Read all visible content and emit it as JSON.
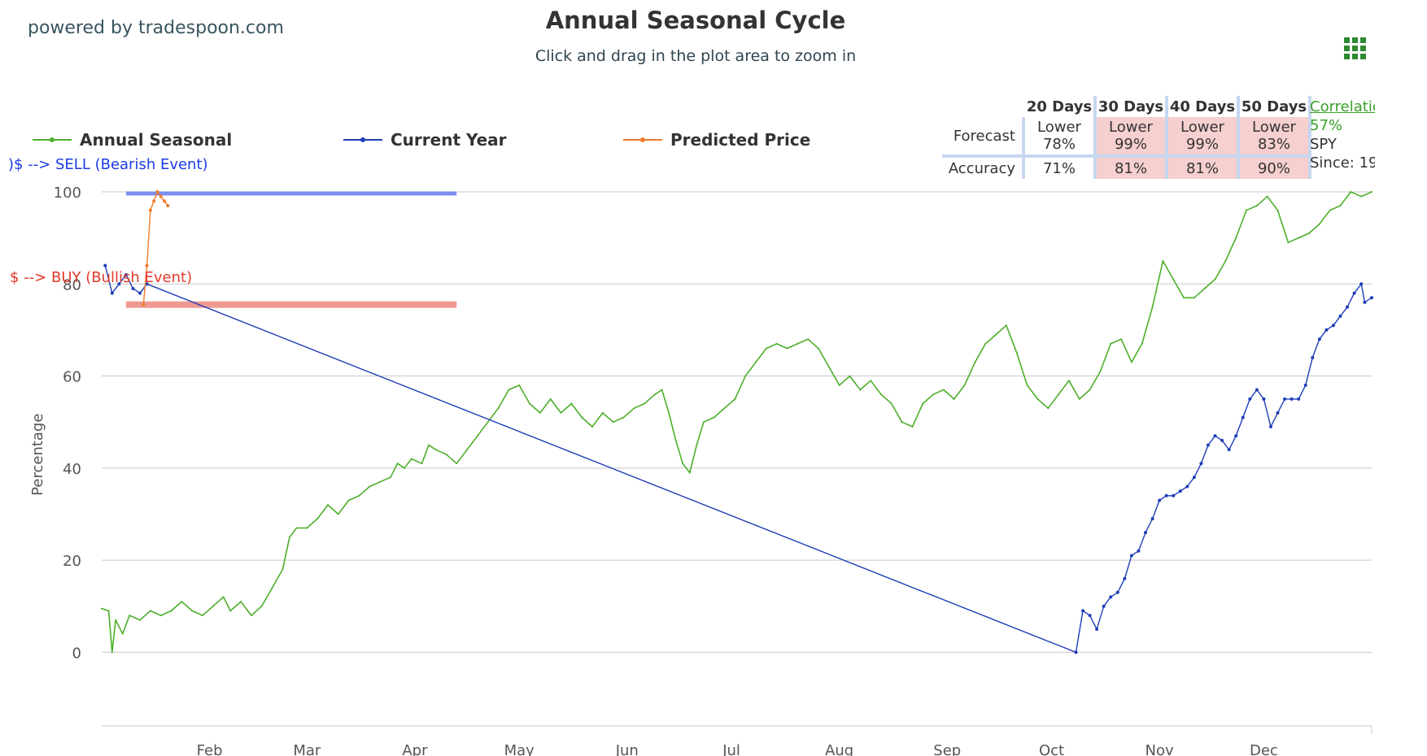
{
  "header": {
    "powered_by": "powered by tradespoon.com",
    "title": "Annual Seasonal Cycle",
    "subtitle": "Click and drag in the plot area to zoom in",
    "menu_icon": "hamburger-grid-icon"
  },
  "legend": [
    {
      "label": "Annual Seasonal",
      "color": "#4caf2a"
    },
    {
      "label": "Current Year",
      "color": "#1f3db8"
    },
    {
      "label": "Predicted Price",
      "color": "#f07b2a"
    }
  ],
  "stats_table": {
    "headers": [
      "20 Days",
      "30 Days",
      "40 Days",
      "50 Days"
    ],
    "forecast_label": "Forecast",
    "accuracy_label": "Accuracy",
    "forecast": [
      {
        "dir": "Lower",
        "pct": "78%",
        "highlight": false
      },
      {
        "dir": "Lower",
        "pct": "99%",
        "highlight": true
      },
      {
        "dir": "Lower",
        "pct": "99%",
        "highlight": true
      },
      {
        "dir": "Lower",
        "pct": "83%",
        "highlight": true
      }
    ],
    "accuracy": [
      {
        "pct": "71%",
        "highlight": false
      },
      {
        "pct": "81%",
        "highlight": true
      },
      {
        "pct": "81%",
        "highlight": true
      },
      {
        "pct": "90%",
        "highlight": true
      }
    ]
  },
  "correlation": {
    "link": "Correlatic",
    "value": "57%",
    "ticker": "SPY",
    "since": "Since: 19"
  },
  "chart_data": {
    "type": "line",
    "ylabel": "Percentage",
    "ylim": [
      -16,
      100
    ],
    "yticks": [
      0,
      20,
      40,
      60,
      80,
      100
    ],
    "xlim": [
      1,
      366
    ],
    "months": [
      {
        "label": "Feb",
        "day": 32
      },
      {
        "label": "Mar",
        "day": 60
      },
      {
        "label": "Apr",
        "day": 91
      },
      {
        "label": "May",
        "day": 121
      },
      {
        "label": "Jun",
        "day": 152
      },
      {
        "label": "Jul",
        "day": 182
      },
      {
        "label": "Aug",
        "day": 213
      },
      {
        "label": "Sep",
        "day": 244
      },
      {
        "label": "Oct",
        "day": 274
      },
      {
        "label": "Nov",
        "day": 305
      },
      {
        "label": "Dec",
        "day": 335
      }
    ],
    "grid": true,
    "sell_annotation": {
      "text": ")$ --> SELL (Bearish Event)",
      "level": 100,
      "color": "#1a3ae6",
      "line_color": "#7b8ff0",
      "x_start": 8,
      "x_end": 103
    },
    "buy_annotation": {
      "text": "$ --> BUY (Bullish Event)",
      "level": 75.5,
      "color": "#e23a2a",
      "line_color": "#ee9a90",
      "x_start": 8,
      "x_end": 103
    },
    "series": [
      {
        "name": "Annual Seasonal",
        "color": "#4caf2a",
        "points": [
          [
            1,
            9.5
          ],
          [
            3,
            9
          ],
          [
            4,
            0
          ],
          [
            5,
            7
          ],
          [
            7,
            4
          ],
          [
            9,
            8
          ],
          [
            12,
            7
          ],
          [
            15,
            9
          ],
          [
            18,
            8
          ],
          [
            21,
            9
          ],
          [
            24,
            11
          ],
          [
            27,
            9
          ],
          [
            30,
            8
          ],
          [
            33,
            10
          ],
          [
            36,
            12
          ],
          [
            38,
            9
          ],
          [
            41,
            11
          ],
          [
            44,
            8
          ],
          [
            47,
            10
          ],
          [
            50,
            14
          ],
          [
            53,
            18
          ],
          [
            55,
            25
          ],
          [
            57,
            27
          ],
          [
            60,
            27
          ],
          [
            63,
            29
          ],
          [
            66,
            32
          ],
          [
            69,
            30
          ],
          [
            72,
            33
          ],
          [
            75,
            34
          ],
          [
            78,
            36
          ],
          [
            81,
            37
          ],
          [
            84,
            38
          ],
          [
            86,
            41
          ],
          [
            88,
            40
          ],
          [
            90,
            42
          ],
          [
            93,
            41
          ],
          [
            95,
            45
          ],
          [
            97,
            44
          ],
          [
            100,
            43
          ],
          [
            103,
            41
          ],
          [
            106,
            44
          ],
          [
            109,
            47
          ],
          [
            112,
            50
          ],
          [
            115,
            53
          ],
          [
            118,
            57
          ],
          [
            121,
            58
          ],
          [
            124,
            54
          ],
          [
            127,
            52
          ],
          [
            130,
            55
          ],
          [
            133,
            52
          ],
          [
            136,
            54
          ],
          [
            139,
            51
          ],
          [
            142,
            49
          ],
          [
            145,
            52
          ],
          [
            148,
            50
          ],
          [
            151,
            51
          ],
          [
            154,
            53
          ],
          [
            157,
            54
          ],
          [
            160,
            56
          ],
          [
            162,
            57
          ],
          [
            164,
            52
          ],
          [
            166,
            46
          ],
          [
            168,
            41
          ],
          [
            170,
            39
          ],
          [
            172,
            45
          ],
          [
            174,
            50
          ],
          [
            177,
            51
          ],
          [
            180,
            53
          ],
          [
            183,
            55
          ],
          [
            186,
            60
          ],
          [
            189,
            63
          ],
          [
            192,
            66
          ],
          [
            195,
            67
          ],
          [
            198,
            66
          ],
          [
            201,
            67
          ],
          [
            204,
            68
          ],
          [
            207,
            66
          ],
          [
            210,
            62
          ],
          [
            213,
            58
          ],
          [
            216,
            60
          ],
          [
            219,
            57
          ],
          [
            222,
            59
          ],
          [
            225,
            56
          ],
          [
            228,
            54
          ],
          [
            231,
            50
          ],
          [
            234,
            49
          ],
          [
            237,
            54
          ],
          [
            240,
            56
          ],
          [
            243,
            57
          ],
          [
            246,
            55
          ],
          [
            249,
            58
          ],
          [
            252,
            63
          ],
          [
            255,
            67
          ],
          [
            258,
            69
          ],
          [
            261,
            71
          ],
          [
            264,
            65
          ],
          [
            267,
            58
          ],
          [
            270,
            55
          ],
          [
            273,
            53
          ],
          [
            276,
            56
          ],
          [
            279,
            59
          ],
          [
            282,
            55
          ],
          [
            285,
            57
          ],
          [
            288,
            61
          ],
          [
            291,
            67
          ],
          [
            294,
            68
          ],
          [
            297,
            63
          ],
          [
            300,
            67
          ],
          [
            303,
            75
          ],
          [
            306,
            85
          ],
          [
            309,
            81
          ],
          [
            312,
            77
          ],
          [
            315,
            77
          ],
          [
            318,
            79
          ],
          [
            321,
            81
          ],
          [
            324,
            85
          ],
          [
            327,
            90
          ],
          [
            330,
            96
          ],
          [
            333,
            97
          ],
          [
            336,
            99
          ],
          [
            339,
            96
          ],
          [
            342,
            89
          ],
          [
            345,
            90
          ],
          [
            348,
            91
          ],
          [
            351,
            93
          ],
          [
            354,
            96
          ],
          [
            357,
            97
          ],
          [
            360,
            100
          ],
          [
            363,
            99
          ],
          [
            366,
            100
          ]
        ]
      },
      {
        "name": "Current Year",
        "color": "#1f3db8",
        "points": [
          [
            2,
            84
          ],
          [
            4,
            78
          ],
          [
            6,
            80
          ],
          [
            8,
            82
          ],
          [
            10,
            79
          ],
          [
            12,
            78
          ],
          [
            14,
            80
          ],
          [
            281,
            0
          ],
          [
            283,
            9
          ],
          [
            285,
            8
          ],
          [
            287,
            5
          ],
          [
            289,
            10
          ],
          [
            291,
            12
          ],
          [
            293,
            13
          ],
          [
            295,
            16
          ],
          [
            297,
            21
          ],
          [
            299,
            22
          ],
          [
            301,
            26
          ],
          [
            303,
            29
          ],
          [
            305,
            33
          ],
          [
            307,
            34
          ],
          [
            309,
            34
          ],
          [
            311,
            35
          ],
          [
            313,
            36
          ],
          [
            315,
            38
          ],
          [
            317,
            41
          ],
          [
            319,
            45
          ],
          [
            321,
            47
          ],
          [
            323,
            46
          ],
          [
            325,
            44
          ],
          [
            327,
            47
          ],
          [
            329,
            51
          ],
          [
            331,
            55
          ],
          [
            333,
            57
          ],
          [
            335,
            55
          ],
          [
            337,
            49
          ],
          [
            339,
            52
          ],
          [
            341,
            55
          ],
          [
            343,
            55
          ],
          [
            345,
            55
          ],
          [
            347,
            58
          ],
          [
            349,
            64
          ],
          [
            351,
            68
          ],
          [
            353,
            70
          ],
          [
            355,
            71
          ],
          [
            357,
            73
          ],
          [
            359,
            75
          ],
          [
            361,
            78
          ],
          [
            363,
            80
          ],
          [
            364,
            76
          ],
          [
            366,
            77
          ]
        ]
      },
      {
        "name": "Predicted Price",
        "color": "#f07b2a",
        "points": [
          [
            13,
            75.5
          ],
          [
            14,
            84
          ],
          [
            15,
            96
          ],
          [
            16,
            98
          ],
          [
            17,
            100
          ],
          [
            18,
            99
          ],
          [
            19,
            98
          ],
          [
            20,
            97
          ]
        ]
      }
    ]
  }
}
